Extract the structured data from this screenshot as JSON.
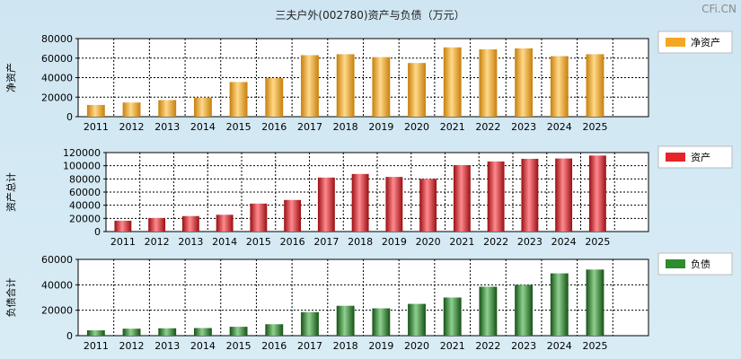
{
  "title": "三夫户外(002780)资产与负债（万元）",
  "watermark": "CFi.CN",
  "chart_data": [
    {
      "type": "bar",
      "id": "net-assets",
      "ylabel": "净资产",
      "legend": "净资产",
      "color": "#f5a623",
      "color_dark": "#c77f0a",
      "color_light": "#ffd98a",
      "categories": [
        "2011",
        "2012",
        "2013",
        "2014",
        "2015",
        "2016",
        "2017",
        "2018",
        "2019",
        "2020",
        "2021",
        "2022",
        "2023",
        "2024",
        "2025"
      ],
      "values": [
        12000,
        14500,
        17000,
        19500,
        35500,
        39500,
        63000,
        64000,
        61000,
        55000,
        71000,
        69000,
        70000,
        62000,
        64000
      ],
      "ylim": [
        0,
        80000
      ],
      "yticks": [
        "0",
        "20000",
        "40000",
        "60000",
        "80000"
      ]
    },
    {
      "type": "bar",
      "id": "total-assets",
      "ylabel": "资产总计",
      "legend": "资产",
      "color": "#e8232a",
      "color_dark": "#9a0e12",
      "color_light": "#ff8a8e",
      "categories": [
        "2011",
        "2012",
        "2013",
        "2014",
        "2015",
        "2016",
        "2017",
        "2018",
        "2019",
        "2020",
        "2021",
        "2022",
        "2023",
        "2024",
        "2025"
      ],
      "values": [
        16500,
        20500,
        23500,
        25500,
        42500,
        48000,
        82000,
        87500,
        83000,
        80000,
        101000,
        106500,
        110500,
        111000,
        115500
      ],
      "ylim": [
        0,
        120000
      ],
      "yticks": [
        "0",
        "20000",
        "40000",
        "60000",
        "80000",
        "100000",
        "120000"
      ]
    },
    {
      "type": "bar",
      "id": "total-liabilities",
      "ylabel": "负债合计",
      "legend": "负债",
      "color": "#2e8b2e",
      "color_dark": "#145214",
      "color_light": "#8fd08f",
      "categories": [
        "2011",
        "2012",
        "2013",
        "2014",
        "2015",
        "2016",
        "2017",
        "2018",
        "2019",
        "2020",
        "2021",
        "2022",
        "2023",
        "2024",
        "2025"
      ],
      "values": [
        4200,
        5500,
        5800,
        6000,
        7000,
        9000,
        18500,
        23500,
        21500,
        25000,
        30000,
        38500,
        40000,
        49000,
        52000
      ],
      "ylim": [
        0,
        60000
      ],
      "yticks": [
        "0",
        "20000",
        "40000",
        "60000"
      ]
    }
  ]
}
